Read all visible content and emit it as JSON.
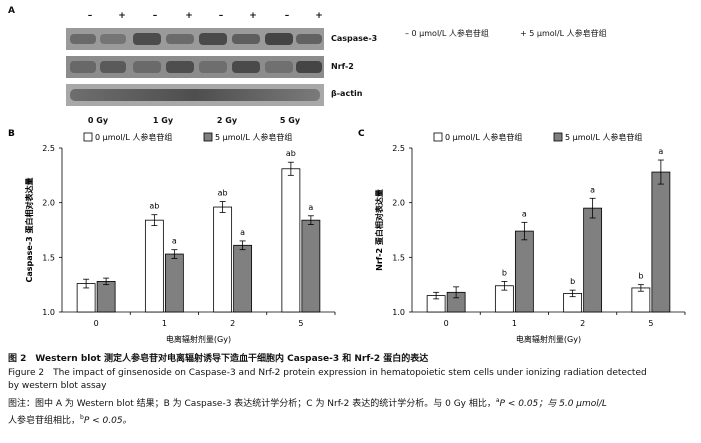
{
  "panelA": {
    "letter": "A",
    "treatment_signs": [
      "–",
      "+",
      "–",
      "+",
      "–",
      "+",
      "–",
      "+"
    ],
    "blot_labels": [
      "Caspase-3",
      "Nrf-2",
      "β-actin"
    ],
    "doses": [
      "0 Gy",
      "1 Gy",
      "2 Gy",
      "5 Gy"
    ],
    "legend": [
      "– 0 μmol/L 人参皂苷组",
      "+ 5 μmol/L 人参皂苷组"
    ]
  },
  "colors": {
    "control_bar": "#ffffff",
    "treated_bar": "#808080",
    "axis": "#000000"
  },
  "chart_data": [
    {
      "panel": "B",
      "type": "bar",
      "ylabel": "Caspase-3 蛋白相对表达量",
      "xlabel": "电离辐射剂量(Gy)",
      "categories": [
        "0",
        "1",
        "2",
        "5"
      ],
      "ylim": [
        1.0,
        2.5
      ],
      "yticks": [
        "1.0",
        "1.5",
        "2.0",
        "2.5"
      ],
      "legend": [
        "0 μmol/L 人参皂苷组",
        "5 μmol/L 人参皂苷组"
      ],
      "series": [
        {
          "name": "0 μmol/L 人参皂苷组",
          "values": [
            1.26,
            1.84,
            1.96,
            2.31
          ],
          "errors": [
            0.04,
            0.05,
            0.05,
            0.06
          ],
          "labels": [
            "",
            "ab",
            "ab",
            "ab"
          ]
        },
        {
          "name": "5 μmol/L 人参皂苷组",
          "values": [
            1.28,
            1.53,
            1.61,
            1.84
          ],
          "errors": [
            0.03,
            0.04,
            0.04,
            0.04
          ],
          "labels": [
            "",
            "a",
            "a",
            "a"
          ]
        }
      ]
    },
    {
      "panel": "C",
      "type": "bar",
      "ylabel": "Nrf-2 蛋白相对表达量",
      "xlabel": "电离辐射剂量(Gy)",
      "categories": [
        "0",
        "1",
        "2",
        "5"
      ],
      "ylim": [
        1.0,
        2.5
      ],
      "yticks": [
        "1.0",
        "1.5",
        "2.0",
        "2.5"
      ],
      "legend": [
        "0 μmol/L 人参皂苷组",
        "5 μmol/L 人参皂苷组"
      ],
      "series": [
        {
          "name": "0 μmol/L 人参皂苷组",
          "values": [
            1.15,
            1.24,
            1.17,
            1.22
          ],
          "errors": [
            0.03,
            0.04,
            0.03,
            0.03
          ],
          "labels": [
            "",
            "b",
            "b",
            "b"
          ]
        },
        {
          "name": "5 μmol/L 人参皂苷组",
          "values": [
            1.18,
            1.74,
            1.95,
            2.28
          ],
          "errors": [
            0.05,
            0.08,
            0.09,
            0.11
          ],
          "labels": [
            "",
            "a",
            "a",
            "a"
          ]
        }
      ]
    }
  ],
  "caption": {
    "line1": "图 2　Western blot 测定人参皂苷对电离辐射诱导下造血干细胞内 Caspase-3 和 Nrf-2 蛋白的表达",
    "line2": "Figure 2　The impact of ginsenoside on Caspase-3 and Nrf-2 protein expression in hematopoietic stem cells under ionizing radiation detected",
    "line3": "by western blot assay",
    "line4a": "图注：图中 A 为 Western blot 结果；B 为 Caspase-3 表达统计学分析；C 为 Nrf-2 表达的统计学分析。与 0 Gy 相比，",
    "sup_a": "a",
    "p1": "P < 0.05；与 5.0 μmol/L",
    "line5a": "人参皂苷组相比，",
    "sup_b": "b",
    "p2": "P < 0.05。"
  }
}
